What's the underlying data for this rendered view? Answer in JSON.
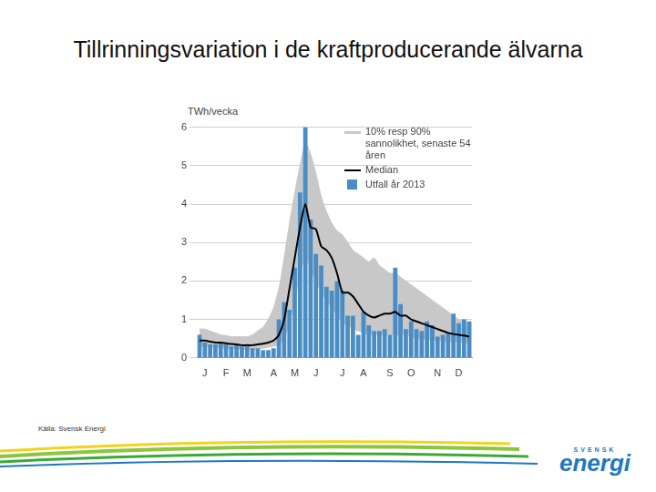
{
  "title": "Tillrinningsvariation i de kraftproducerande älvarna",
  "source": "Källa: Svensk Energi",
  "logo": {
    "top": "SVENSK",
    "main": "energi"
  },
  "chart_data": {
    "type": "bar",
    "ylabel": "TWh/vecka",
    "categories": [
      null,
      "J",
      null,
      null,
      null,
      "F",
      null,
      null,
      null,
      "M",
      null,
      null,
      null,
      null,
      "A",
      null,
      null,
      null,
      "M",
      null,
      null,
      null,
      "J",
      null,
      null,
      null,
      null,
      "J",
      null,
      null,
      null,
      "A",
      null,
      null,
      null,
      null,
      "S",
      null,
      null,
      null,
      "O",
      null,
      null,
      null,
      null,
      "N",
      null,
      null,
      null,
      "D",
      null,
      null
    ],
    "series": [
      {
        "name": "10% resp 90% sannolikhet, senaste 54 åren",
        "type": "area",
        "color": "#c8c8c8",
        "low": [
          0.3,
          0.3,
          0.28,
          0.27,
          0.26,
          0.25,
          0.24,
          0.23,
          0.22,
          0.22,
          0.22,
          0.23,
          0.25,
          0.28,
          0.3,
          0.35,
          0.5,
          0.9,
          1.5,
          2.2,
          2.6,
          2.3,
          2.0,
          1.7,
          1.5,
          1.3,
          1.1,
          0.9,
          0.85,
          0.75,
          0.7,
          0.65,
          0.6,
          0.6,
          0.6,
          0.6,
          0.6,
          0.6,
          0.6,
          0.6,
          0.55,
          0.5,
          0.5,
          0.48,
          0.46,
          0.45,
          0.44,
          0.43,
          0.42,
          0.41,
          0.4,
          0.4
        ],
        "high": [
          0.75,
          0.75,
          0.7,
          0.65,
          0.6,
          0.58,
          0.55,
          0.55,
          0.55,
          0.55,
          0.6,
          0.7,
          0.8,
          1.0,
          1.3,
          1.8,
          2.6,
          3.5,
          4.3,
          5.0,
          5.6,
          5.3,
          4.8,
          4.2,
          3.8,
          3.5,
          3.3,
          3.2,
          3.0,
          2.8,
          2.7,
          2.6,
          2.5,
          2.6,
          2.4,
          2.3,
          2.2,
          2.2,
          2.1,
          2.0,
          1.9,
          1.8,
          1.7,
          1.6,
          1.5,
          1.4,
          1.3,
          1.2,
          1.1,
          1.0,
          0.95,
          0.9
        ]
      },
      {
        "name": "Median",
        "type": "line",
        "color": "#000000",
        "values": [
          0.45,
          0.45,
          0.42,
          0.4,
          0.4,
          0.38,
          0.36,
          0.35,
          0.33,
          0.33,
          0.33,
          0.35,
          0.37,
          0.4,
          0.45,
          0.6,
          1.0,
          1.8,
          2.6,
          3.4,
          4.0,
          3.4,
          3.35,
          2.9,
          2.8,
          2.6,
          2.2,
          1.7,
          1.7,
          1.6,
          1.4,
          1.2,
          1.1,
          1.05,
          1.1,
          1.15,
          1.15,
          1.2,
          1.1,
          1.1,
          1.0,
          0.95,
          0.9,
          0.85,
          0.8,
          0.75,
          0.7,
          0.65,
          0.62,
          0.6,
          0.58,
          0.55
        ]
      },
      {
        "name": "Utfall år 2013",
        "type": "bar",
        "color": "#4a8cc4",
        "values": [
          0.6,
          0.4,
          0.35,
          0.35,
          0.4,
          0.35,
          0.3,
          0.35,
          0.3,
          0.3,
          0.25,
          0.25,
          0.2,
          0.2,
          0.25,
          1.0,
          1.45,
          1.25,
          2.35,
          4.3,
          6.0,
          3.6,
          2.7,
          2.4,
          1.85,
          1.75,
          2.0,
          1.75,
          1.1,
          1.1,
          0.6,
          1.2,
          0.85,
          0.7,
          0.7,
          0.75,
          0.6,
          2.35,
          1.4,
          0.75,
          0.95,
          0.75,
          0.7,
          0.95,
          0.85,
          0.55,
          0.6,
          0.65,
          1.15,
          0.9,
          1.0,
          0.95
        ]
      }
    ],
    "ylim": [
      0,
      6
    ],
    "yticks": [
      0,
      1,
      2,
      3,
      4,
      5,
      6
    ],
    "grid": true,
    "legend": "upper right"
  }
}
